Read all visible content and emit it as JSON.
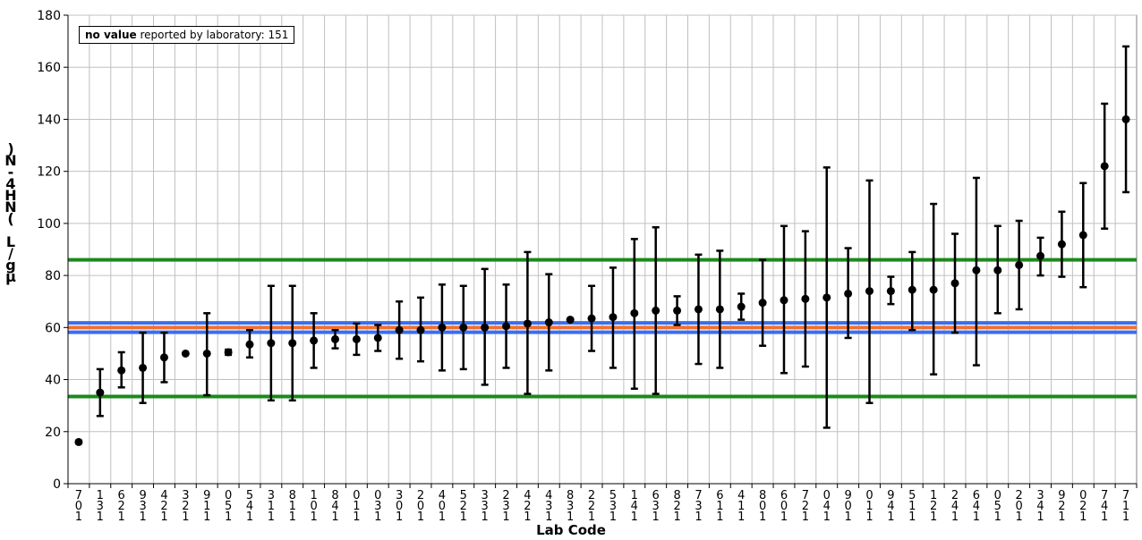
{
  "chart_data": {
    "type": "scatter",
    "xlabel": "Lab Code",
    "ylabel": "µg/L (NH4-N)",
    "ylim": [
      0,
      180
    ],
    "yticks": [
      0,
      20,
      40,
      60,
      80,
      100,
      120,
      140,
      160,
      180
    ],
    "grid": true,
    "note": {
      "bold": "no value",
      "rest": " reported by laboratory: 151"
    },
    "x": [
      "107",
      "131",
      "126",
      "139",
      "124",
      "112",
      "119",
      "105",
      "145",
      "113",
      "118",
      "101",
      "148",
      "110",
      "130",
      "103",
      "102",
      "104",
      "125",
      "133",
      "132",
      "124",
      "134",
      "138",
      "122",
      "135",
      "141",
      "136",
      "128",
      "137",
      "116",
      "114",
      "108",
      "106",
      "127",
      "140",
      "109",
      "110",
      "149",
      "115",
      "121",
      "142",
      "146",
      "150",
      "102",
      "143",
      "129",
      "120",
      "147",
      "117"
    ],
    "lab_rows": [
      [
        "7",
        "0",
        "1"
      ],
      [
        "1",
        "3",
        "1"
      ],
      [
        "6",
        "2",
        "1"
      ],
      [
        "9",
        "3",
        "1"
      ],
      [
        "4",
        "2",
        "1"
      ],
      [
        "3",
        "2",
        "1"
      ],
      [
        "9",
        "1",
        "1"
      ],
      [
        "0",
        "5",
        "1"
      ],
      [
        "5",
        "4",
        "1"
      ],
      [
        "3",
        "1",
        "1"
      ],
      [
        "8",
        "1",
        "1"
      ],
      [
        "1",
        "0",
        "1"
      ],
      [
        "8",
        "4",
        "1"
      ],
      [
        "0",
        "1",
        "1"
      ],
      [
        "0",
        "3",
        "1"
      ],
      [
        "3",
        "0",
        "1"
      ],
      [
        "2",
        "0",
        "1"
      ],
      [
        "4",
        "0",
        "1"
      ],
      [
        "5",
        "2",
        "1"
      ],
      [
        "3",
        "3",
        "1"
      ],
      [
        "2",
        "3",
        "1"
      ],
      [
        "4",
        "2",
        "1"
      ],
      [
        "4",
        "3",
        "1"
      ],
      [
        "8",
        "3",
        "1"
      ],
      [
        "2",
        "2",
        "1"
      ],
      [
        "5",
        "3",
        "1"
      ],
      [
        "1",
        "4",
        "1"
      ],
      [
        "6",
        "3",
        "1"
      ],
      [
        "8",
        "2",
        "1"
      ],
      [
        "7",
        "3",
        "1"
      ],
      [
        "6",
        "1",
        "1"
      ],
      [
        "4",
        "1",
        "1"
      ],
      [
        "8",
        "0",
        "1"
      ],
      [
        "6",
        "0",
        "1"
      ],
      [
        "7",
        "2",
        "1"
      ],
      [
        "0",
        "4",
        "1"
      ],
      [
        "9",
        "0",
        "1"
      ],
      [
        "0",
        "1",
        "1"
      ],
      [
        "9",
        "4",
        "1"
      ],
      [
        "5",
        "1",
        "1"
      ],
      [
        "1",
        "2",
        "1"
      ],
      [
        "2",
        "4",
        "1"
      ],
      [
        "6",
        "4",
        "1"
      ],
      [
        "0",
        "5",
        "1"
      ],
      [
        "2",
        "0",
        "1"
      ],
      [
        "3",
        "4",
        "1"
      ],
      [
        "9",
        "2",
        "1"
      ],
      [
        "0",
        "2",
        "1"
      ],
      [
        "7",
        "4",
        "1"
      ],
      [
        "7",
        "1",
        "1"
      ]
    ],
    "series": [
      {
        "values": [
          16,
          35,
          43.5,
          44.5,
          48.5,
          50,
          50,
          50.5,
          53.5,
          54,
          54,
          55,
          55.5,
          55.5,
          56,
          59,
          59,
          60,
          60,
          60,
          60.5,
          61.5,
          62,
          63,
          63.5,
          64,
          65.5,
          66.5,
          66.5,
          67,
          67,
          68,
          69.5,
          70.5,
          71,
          71.5,
          73,
          74,
          74,
          74.5,
          74.5,
          77,
          82,
          82,
          84,
          87.5,
          92,
          95.5,
          122,
          140
        ],
        "error_low": [
          15.5,
          26,
          37,
          31,
          39,
          50,
          34,
          49.5,
          48.5,
          32,
          32,
          44.5,
          52,
          49.5,
          51,
          48,
          47,
          43.5,
          44,
          38,
          44.5,
          34.5,
          43.5,
          63,
          51,
          44.5,
          36.5,
          34.5,
          61,
          46,
          44.5,
          63,
          53,
          42.5,
          45,
          21.5,
          56,
          31,
          69,
          59,
          42,
          58,
          45.5,
          65.5,
          67,
          80,
          79.5,
          75.5,
          98,
          112
        ],
        "error_high": [
          16.5,
          44,
          50.5,
          58,
          58,
          50,
          65.5,
          51.5,
          59,
          76,
          76,
          65.5,
          59,
          61.5,
          61,
          70,
          71.5,
          76.5,
          76,
          82.5,
          76.5,
          89,
          80.5,
          63,
          76,
          83,
          94,
          98.5,
          72,
          88,
          89.5,
          73,
          86,
          99,
          97,
          121.5,
          90.5,
          116.5,
          79.5,
          89,
          107.5,
          96,
          117.5,
          99,
          101,
          94.5,
          104.5,
          115.5,
          146,
          168
        ]
      }
    ],
    "reference_lines": [
      {
        "value": 86,
        "color": "#1a8a1a"
      },
      {
        "value": 61.8,
        "color": "#3a6ef0"
      },
      {
        "value": 60,
        "color": "#f07030"
      },
      {
        "value": 58.2,
        "color": "#3a6ef0"
      },
      {
        "value": 33.5,
        "color": "#1a8a1a"
      }
    ]
  }
}
